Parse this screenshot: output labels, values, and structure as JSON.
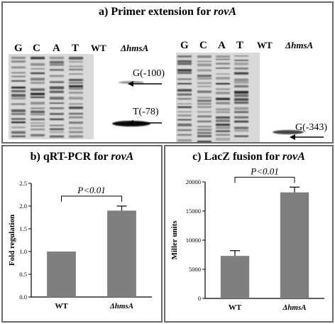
{
  "figure": {
    "panel_a": {
      "title_prefix": "a)",
      "title_text": "Primer extension for",
      "title_gene": "rovA",
      "left_gel": {
        "lanes": [
          "G",
          "C",
          "A",
          "T"
        ],
        "wt_label": "WT",
        "mutant_label": "ΔhmsA",
        "annotations": [
          "G(-100)",
          "T(-78)"
        ]
      },
      "right_gel": {
        "lanes": [
          "G",
          "C",
          "A",
          "T"
        ],
        "wt_label": "WT",
        "mutant_label": "ΔhmsA",
        "annotations": [
          "G(-343)"
        ]
      }
    },
    "panel_b": {
      "title_prefix": "b)",
      "title_text": "qRT-PCR for",
      "title_gene": "rovA"
    },
    "panel_c": {
      "title_prefix": "c)",
      "title_text": "LacZ fusion for",
      "title_gene": "rovA"
    },
    "border_color": "#6a6a6a",
    "bar_color": "#7f7f7f"
  },
  "chart_data": [
    {
      "type": "bar",
      "categories": [
        "WT",
        "ΔhmsA"
      ],
      "values": [
        1.0,
        1.9
      ],
      "errors": [
        0,
        0.1
      ],
      "ylabel": "Fold regulation",
      "ylim": [
        0,
        2.5
      ],
      "yticks": [
        "0.0",
        "0.5",
        "1.0",
        "1.5",
        "2.0",
        "2.5"
      ],
      "significance": "P<0.01"
    },
    {
      "type": "bar",
      "categories": [
        "WT",
        "ΔhmsA"
      ],
      "values": [
        7300,
        18200
      ],
      "errors": [
        900,
        900
      ],
      "ylabel": "Miller units",
      "ylim": [
        0,
        20000
      ],
      "yticks": [
        "0",
        "5000",
        "10000",
        "15000",
        "20000"
      ],
      "significance": "P<0.01"
    }
  ]
}
